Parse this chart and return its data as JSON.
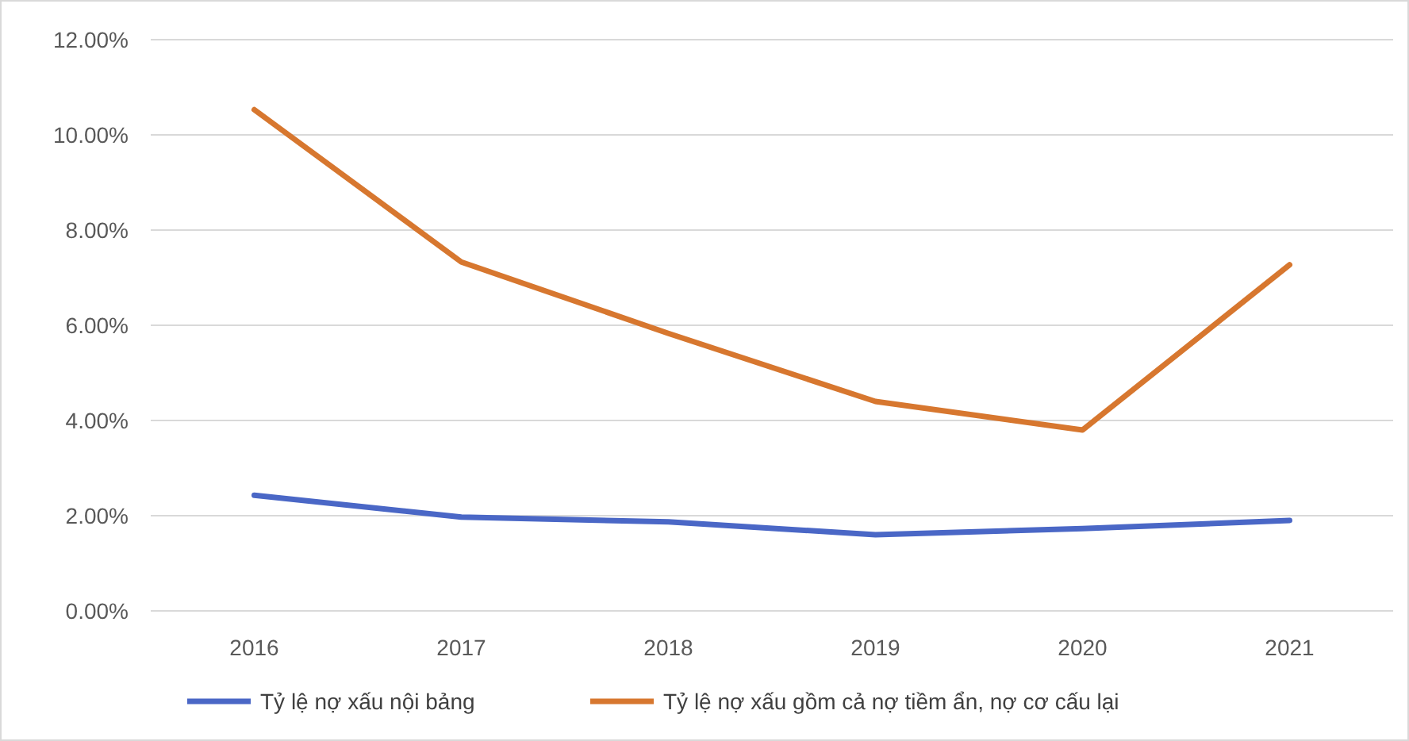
{
  "chart_data": {
    "type": "line",
    "categories": [
      "2016",
      "2017",
      "2018",
      "2019",
      "2020",
      "2021"
    ],
    "series": [
      {
        "name": "Tỷ lệ nợ xấu nội bảng",
        "color": "#4a67c6",
        "values": [
          2.43,
          1.97,
          1.87,
          1.6,
          1.73,
          1.9
        ]
      },
      {
        "name": "Tỷ lệ nợ xấu gồm cả nợ tiềm ẩn, nợ cơ cấu lại",
        "color": "#d7772f",
        "values": [
          10.53,
          7.33,
          5.83,
          4.4,
          3.8,
          7.27
        ]
      }
    ],
    "ylim": [
      0,
      12
    ],
    "yticks": [
      {
        "value": 0,
        "label": "0.00%"
      },
      {
        "value": 2,
        "label": "2.00%"
      },
      {
        "value": 4,
        "label": "4.00%"
      },
      {
        "value": 6,
        "label": "6.00%"
      },
      {
        "value": 8,
        "label": "8.00%"
      },
      {
        "value": 10,
        "label": "10.00%"
      },
      {
        "value": 12,
        "label": "12.00%"
      }
    ],
    "grid": "y",
    "legend": "bottom",
    "marker": "none",
    "line_style": "solid"
  }
}
